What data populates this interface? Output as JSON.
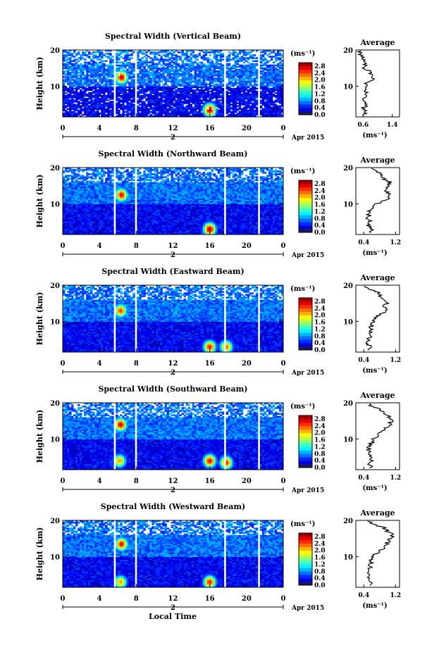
{
  "chart_data": [
    {
      "type": "heatmap",
      "title": "Spectral Width (Vertical Beam)",
      "ylabel": "Height (km)",
      "x_ticks": [
        "0",
        "4",
        "8",
        "12",
        "16",
        "20",
        "0"
      ],
      "y_ticks": [
        "20",
        "10"
      ],
      "xlim": [
        0,
        24
      ],
      "ylim": [
        1.5,
        20
      ],
      "date_label": "2",
      "month_label": "Apr 2015",
      "colorbar_unit": "(ms⁻¹)",
      "colorbar_ticks": [
        "2.8",
        "2.4",
        "2.0",
        "1.6",
        "1.2",
        "0.8",
        "0.4",
        "0.0"
      ],
      "colorbar_range": [
        0,
        3.0
      ],
      "gap_hours": [
        5.6,
        8.0,
        17.7,
        21.4
      ],
      "hotspots": [
        {
          "hour": 6.4,
          "height": 12.5,
          "value": 2.8
        },
        {
          "hour": 16.0,
          "height": 3.5,
          "value": 2.9
        }
      ],
      "average": {
        "title": "Average",
        "xlabel": "(ms⁻¹)",
        "x_ticks": [
          "0.6",
          "1.4"
        ],
        "xlim": [
          0.4,
          1.6
        ],
        "y_ticks": [
          "20",
          "10"
        ],
        "profile_heights": [
          2,
          3,
          4,
          5,
          6,
          7,
          8,
          9,
          10,
          11,
          12,
          13,
          14,
          15,
          16,
          17,
          18,
          19,
          20
        ],
        "profile_values": [
          0.62,
          0.68,
          0.6,
          0.72,
          0.62,
          0.66,
          0.7,
          0.66,
          0.72,
          0.65,
          0.9,
          0.82,
          0.8,
          0.62,
          0.66,
          0.6,
          0.58,
          0.52,
          0.5
        ]
      }
    },
    {
      "type": "heatmap",
      "title": "Spectral Width (Northward Beam)",
      "ylabel": "Height (km)",
      "x_ticks": [
        "0",
        "4",
        "8",
        "12",
        "16",
        "20",
        "0"
      ],
      "y_ticks": [
        "20",
        "10"
      ],
      "xlim": [
        0,
        24
      ],
      "ylim": [
        1.5,
        20
      ],
      "date_label": "2",
      "month_label": "Apr 2015",
      "colorbar_unit": "(ms⁻¹)",
      "colorbar_ticks": [
        "2.8",
        "2.4",
        "2.0",
        "1.6",
        "1.2",
        "0.8",
        "0.4",
        "0.0"
      ],
      "colorbar_range": [
        0,
        3.0
      ],
      "gap_hours": [
        5.6,
        8.0,
        17.7,
        21.4
      ],
      "hotspots": [
        {
          "hour": 6.4,
          "height": 12.5,
          "value": 2.7
        },
        {
          "hour": 16.0,
          "height": 3.0,
          "value": 2.9
        }
      ],
      "average": {
        "title": "Average",
        "xlabel": "(ms⁻¹)",
        "x_ticks": [
          "0.4",
          "1.2"
        ],
        "xlim": [
          0.2,
          1.3
        ],
        "y_ticks": [
          "20",
          "10"
        ],
        "profile_heights": [
          2,
          3,
          4,
          5,
          6,
          7,
          8,
          9,
          10,
          11,
          12,
          13,
          14,
          15,
          16,
          17,
          18,
          19,
          20
        ],
        "profile_values": [
          0.55,
          0.6,
          0.5,
          0.55,
          0.5,
          0.52,
          0.55,
          0.6,
          0.72,
          0.95,
          1.05,
          1.0,
          0.95,
          0.98,
          1.05,
          0.9,
          0.85,
          0.7,
          0.5
        ]
      }
    },
    {
      "type": "heatmap",
      "title": "Spectral Width (Eastward Beam)",
      "ylabel": "Height (km)",
      "x_ticks": [
        "0",
        "4",
        "8",
        "12",
        "16",
        "20",
        "0"
      ],
      "y_ticks": [
        "20",
        "10"
      ],
      "xlim": [
        0,
        24
      ],
      "ylim": [
        1.5,
        20
      ],
      "date_label": "2",
      "month_label": "Apr 2015",
      "colorbar_unit": "(ms⁻¹)",
      "colorbar_ticks": [
        "2.8",
        "2.4",
        "2.0",
        "1.6",
        "1.2",
        "0.8",
        "0.4",
        "0.0"
      ],
      "colorbar_range": [
        0,
        3.0
      ],
      "gap_hours": [
        5.6,
        8.0,
        17.7,
        21.4
      ],
      "hotspots": [
        {
          "hour": 6.3,
          "height": 13.0,
          "value": 2.5
        },
        {
          "hour": 16.0,
          "height": 3.0,
          "value": 2.6
        },
        {
          "hour": 17.8,
          "height": 3.0,
          "value": 2.4
        }
      ],
      "average": {
        "title": "Average",
        "xlabel": "(ms⁻¹)",
        "x_ticks": [
          "0.4",
          "1.2"
        ],
        "xlim": [
          0.2,
          1.3
        ],
        "y_ticks": [
          "20",
          "10"
        ],
        "profile_heights": [
          2,
          3,
          4,
          5,
          6,
          7,
          8,
          9,
          10,
          11,
          12,
          13,
          14,
          15,
          16,
          17,
          18,
          19,
          20
        ],
        "profile_values": [
          0.5,
          0.55,
          0.5,
          0.52,
          0.55,
          0.6,
          0.58,
          0.6,
          0.62,
          0.7,
          0.85,
          0.95,
          0.9,
          1.0,
          0.95,
          0.8,
          0.75,
          0.5,
          0.45
        ]
      }
    },
    {
      "type": "heatmap",
      "title": "Spectral Width (Southward Beam)",
      "ylabel": "Height (km)",
      "x_ticks": [
        "0",
        "4",
        "8",
        "12",
        "16",
        "20",
        "0"
      ],
      "y_ticks": [
        "20",
        "10"
      ],
      "xlim": [
        0,
        24
      ],
      "ylim": [
        1.5,
        20
      ],
      "date_label": "2",
      "month_label": "Apr 2015",
      "colorbar_unit": "(ms⁻¹)",
      "colorbar_ticks": [
        "2.8",
        "2.4",
        "2.0",
        "1.6",
        "1.2",
        "0.8",
        "0.4",
        "0.0"
      ],
      "colorbar_range": [
        0,
        3.0
      ],
      "gap_hours": [
        5.6,
        8.0,
        17.7,
        21.4
      ],
      "hotspots": [
        {
          "hour": 6.3,
          "height": 14.0,
          "value": 2.8
        },
        {
          "hour": 6.2,
          "height": 4.0,
          "value": 2.2
        },
        {
          "hour": 16.0,
          "height": 4.0,
          "value": 2.7
        },
        {
          "hour": 17.8,
          "height": 3.5,
          "value": 2.6
        }
      ],
      "average": {
        "title": "Average",
        "xlabel": "(ms⁻¹)",
        "x_ticks": [
          "0.4",
          "1.2"
        ],
        "xlim": [
          0.2,
          1.3
        ],
        "y_ticks": [
          "20",
          "10"
        ],
        "profile_heights": [
          2,
          3,
          4,
          5,
          6,
          7,
          8,
          9,
          10,
          11,
          12,
          13,
          14,
          15,
          16,
          17,
          18,
          19,
          20
        ],
        "profile_values": [
          0.6,
          0.55,
          0.62,
          0.58,
          0.55,
          0.52,
          0.55,
          0.6,
          0.65,
          0.75,
          0.85,
          0.95,
          1.05,
          1.1,
          1.05,
          0.95,
          0.85,
          0.6,
          0.5
        ]
      }
    },
    {
      "type": "heatmap",
      "title": "Spectral Width (Westward Beam)",
      "ylabel": "Height (km)",
      "x_ticks": [
        "0",
        "4",
        "8",
        "12",
        "16",
        "20",
        "0"
      ],
      "y_ticks": [
        "20",
        "10"
      ],
      "xlim": [
        0,
        24
      ],
      "ylim": [
        1.5,
        20
      ],
      "date_label": "2",
      "month_label": "Apr 2015",
      "colorbar_unit": "(ms⁻¹)",
      "colorbar_ticks": [
        "2.8",
        "2.4",
        "2.0",
        "1.6",
        "1.2",
        "0.8",
        "0.4",
        "0.0"
      ],
      "colorbar_range": [
        0,
        3.0
      ],
      "gap_hours": [
        5.6,
        8.0,
        17.7,
        21.4
      ],
      "hotspots": [
        {
          "hour": 6.4,
          "height": 13.5,
          "value": 2.7
        },
        {
          "hour": 6.3,
          "height": 3.0,
          "value": 2.2
        },
        {
          "hour": 16.0,
          "height": 3.0,
          "value": 2.6
        }
      ],
      "average": {
        "title": "Average",
        "xlabel": "(ms⁻¹)",
        "x_ticks": [
          "0.4",
          "1.2"
        ],
        "xlim": [
          0.2,
          1.3
        ],
        "y_ticks": [
          "20",
          "10"
        ],
        "profile_heights": [
          2,
          3,
          4,
          5,
          6,
          7,
          8,
          9,
          10,
          11,
          12,
          13,
          14,
          15,
          16,
          17,
          18,
          19,
          20
        ],
        "profile_values": [
          0.55,
          0.6,
          0.55,
          0.5,
          0.52,
          0.55,
          0.58,
          0.6,
          0.65,
          0.72,
          0.85,
          0.95,
          1.0,
          1.05,
          1.15,
          1.0,
          0.9,
          0.6,
          0.5
        ]
      }
    }
  ],
  "figure": {
    "xlabel": "Local Time"
  }
}
